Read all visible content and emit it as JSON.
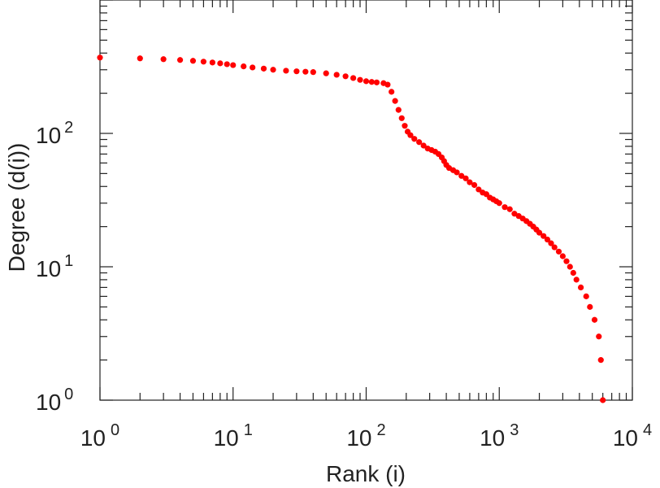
{
  "chart_data": {
    "type": "scatter",
    "xlabel": "Rank (i)",
    "ylabel": "Degree (d(i))",
    "xscale": "log",
    "yscale": "log",
    "xlim": [
      1,
      10000
    ],
    "ylim": [
      1,
      1000
    ],
    "grid": false,
    "marker_color": "#ff0000",
    "x_ticks": [
      {
        "base": "10",
        "exp": "0"
      },
      {
        "base": "10",
        "exp": "1"
      },
      {
        "base": "10",
        "exp": "2"
      },
      {
        "base": "10",
        "exp": "3"
      },
      {
        "base": "10",
        "exp": "4"
      }
    ],
    "y_ticks": [
      {
        "base": "10",
        "exp": "0"
      },
      {
        "base": "10",
        "exp": "1"
      },
      {
        "base": "10",
        "exp": "2"
      }
    ],
    "series": [
      {
        "points": [
          [
            1,
            370
          ],
          [
            2,
            365
          ],
          [
            3,
            360
          ],
          [
            4,
            355
          ],
          [
            5,
            350
          ],
          [
            6,
            345
          ],
          [
            7,
            340
          ],
          [
            8,
            335
          ],
          [
            9,
            330
          ],
          [
            10,
            325
          ],
          [
            12,
            318
          ],
          [
            14,
            312
          ],
          [
            17,
            306
          ],
          [
            20,
            300
          ],
          [
            25,
            295
          ],
          [
            30,
            292
          ],
          [
            35,
            290
          ],
          [
            40,
            288
          ],
          [
            50,
            282
          ],
          [
            60,
            275
          ],
          [
            70,
            268
          ],
          [
            80,
            260
          ],
          [
            90,
            252
          ],
          [
            100,
            246
          ],
          [
            110,
            243
          ],
          [
            120,
            241
          ],
          [
            135,
            238
          ],
          [
            145,
            232
          ],
          [
            155,
            205
          ],
          [
            165,
            175
          ],
          [
            175,
            150
          ],
          [
            185,
            130
          ],
          [
            195,
            114
          ],
          [
            205,
            103
          ],
          [
            215,
            97
          ],
          [
            230,
            91
          ],
          [
            250,
            86
          ],
          [
            270,
            81
          ],
          [
            290,
            77
          ],
          [
            310,
            75
          ],
          [
            330,
            73
          ],
          [
            350,
            70
          ],
          [
            370,
            66
          ],
          [
            385,
            62
          ],
          [
            400,
            58
          ],
          [
            420,
            55
          ],
          [
            450,
            53
          ],
          [
            480,
            51
          ],
          [
            520,
            48
          ],
          [
            560,
            46
          ],
          [
            600,
            43
          ],
          [
            650,
            41
          ],
          [
            700,
            38
          ],
          [
            750,
            36
          ],
          [
            800,
            35
          ],
          [
            850,
            33
          ],
          [
            900,
            32
          ],
          [
            950,
            31
          ],
          [
            1000,
            30
          ],
          [
            1100,
            28
          ],
          [
            1200,
            27
          ],
          [
            1300,
            25
          ],
          [
            1400,
            24
          ],
          [
            1500,
            23
          ],
          [
            1600,
            22
          ],
          [
            1700,
            21
          ],
          [
            1800,
            20
          ],
          [
            1900,
            19
          ],
          [
            2000,
            18
          ],
          [
            2150,
            17
          ],
          [
            2300,
            16
          ],
          [
            2450,
            15
          ],
          [
            2600,
            14
          ],
          [
            2800,
            13
          ],
          [
            3000,
            12
          ],
          [
            3200,
            11
          ],
          [
            3400,
            10
          ],
          [
            3600,
            9
          ],
          [
            3800,
            8
          ],
          [
            4100,
            7
          ],
          [
            4500,
            6
          ],
          [
            4800,
            5
          ],
          [
            5200,
            4
          ],
          [
            5600,
            3
          ],
          [
            5800,
            2
          ],
          [
            6000,
            1
          ]
        ]
      }
    ]
  }
}
